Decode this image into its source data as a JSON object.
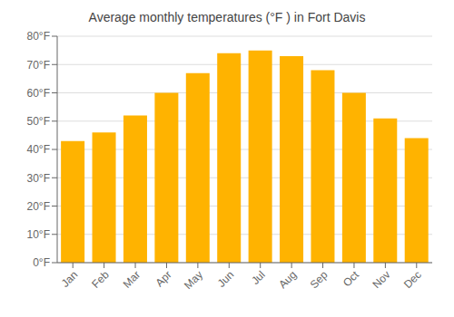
{
  "chart_data": {
    "type": "bar",
    "title": "Average monthly temperatures (°F ) in Fort Davis",
    "categories": [
      "Jan",
      "Feb",
      "Mar",
      "Apr",
      "May",
      "Jun",
      "Jul",
      "Aug",
      "Sep",
      "Oct",
      "Nov",
      "Dec"
    ],
    "values": [
      43,
      46,
      52,
      60,
      67,
      74,
      75,
      73,
      68,
      60,
      51,
      44
    ],
    "color": "#FFB300",
    "ylim": [
      0,
      80
    ],
    "yticks": [
      {
        "value": 0,
        "label": "0°F"
      },
      {
        "value": 10,
        "label": "10°F"
      },
      {
        "value": 20,
        "label": "20°F"
      },
      {
        "value": 30,
        "label": "30°F"
      },
      {
        "value": 40,
        "label": "40°F"
      },
      {
        "value": 50,
        "label": "50°F"
      },
      {
        "value": 60,
        "label": "60°F"
      },
      {
        "value": 70,
        "label": "70°F"
      },
      {
        "value": 80,
        "label": "80°F"
      }
    ],
    "grid": true
  }
}
